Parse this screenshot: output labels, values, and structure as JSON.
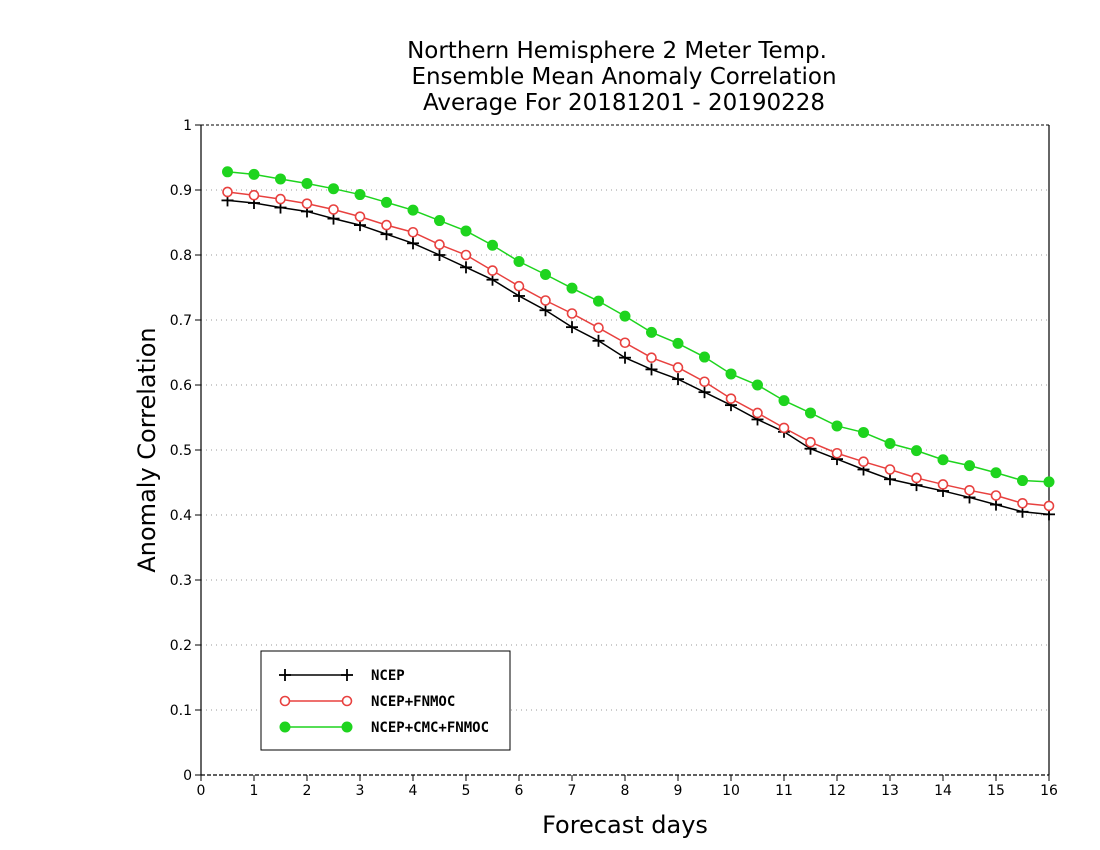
{
  "chart_data": {
    "type": "line",
    "title": [
      "Northern Hemisphere 2 Meter Temp.",
      "Ensemble Mean Anomaly Correlation",
      "Average For 20181201 - 20190228"
    ],
    "xlabel": "Forecast days",
    "ylabel": "Anomaly Correlation",
    "xlim": [
      0,
      16
    ],
    "ylim": [
      0,
      1
    ],
    "xticks": [
      "0",
      "1",
      "2",
      "3",
      "4",
      "5",
      "6",
      "7",
      "8",
      "9",
      "10",
      "11",
      "12",
      "13",
      "14",
      "15",
      "16"
    ],
    "yticks": [
      "0",
      "0.1",
      "0.2",
      "0.3",
      "0.4",
      "0.5",
      "0.6",
      "0.7",
      "0.8",
      "0.9",
      "1"
    ],
    "grid": "horizontal-dotted",
    "legend_position": "bottom-left",
    "x": [
      0.5,
      1,
      1.5,
      2,
      2.5,
      3,
      3.5,
      4,
      4.5,
      5,
      5.5,
      6,
      6.5,
      7,
      7.5,
      8,
      8.5,
      9,
      9.5,
      10,
      10.5,
      11,
      11.5,
      12,
      12.5,
      13,
      13.5,
      14,
      14.5,
      15,
      15.5,
      16
    ],
    "series": [
      {
        "name": "NCEP",
        "color": "#000000",
        "marker": "plus",
        "values": [
          0.884,
          0.88,
          0.873,
          0.867,
          0.856,
          0.846,
          0.832,
          0.818,
          0.8,
          0.781,
          0.762,
          0.737,
          0.715,
          0.689,
          0.668,
          0.642,
          0.624,
          0.609,
          0.589,
          0.569,
          0.547,
          0.528,
          0.502,
          0.486,
          0.47,
          0.455,
          0.446,
          0.437,
          0.427,
          0.416,
          0.405,
          0.401
        ]
      },
      {
        "name": "NCEP+FNMOC",
        "color": "#e8413f",
        "marker": "open-circle",
        "values": [
          0.897,
          0.892,
          0.886,
          0.879,
          0.87,
          0.859,
          0.846,
          0.835,
          0.816,
          0.8,
          0.776,
          0.752,
          0.73,
          0.71,
          0.688,
          0.665,
          0.642,
          0.627,
          0.605,
          0.579,
          0.557,
          0.534,
          0.512,
          0.495,
          0.482,
          0.47,
          0.457,
          0.447,
          0.438,
          0.43,
          0.418,
          0.414
        ]
      },
      {
        "name": "NCEP+CMC+FNMOC",
        "color": "#1ed41e",
        "marker": "filled-circle",
        "values": [
          0.928,
          0.924,
          0.917,
          0.91,
          0.902,
          0.893,
          0.881,
          0.869,
          0.853,
          0.837,
          0.815,
          0.79,
          0.77,
          0.749,
          0.729,
          0.706,
          0.681,
          0.664,
          0.643,
          0.617,
          0.6,
          0.576,
          0.557,
          0.537,
          0.527,
          0.51,
          0.499,
          0.485,
          0.476,
          0.465,
          0.453,
          0.451
        ]
      }
    ]
  }
}
